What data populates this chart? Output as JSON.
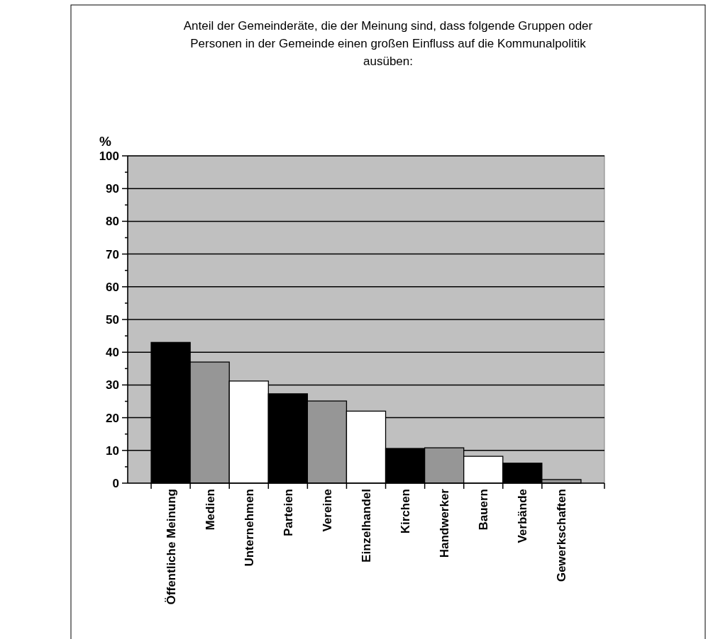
{
  "chart_data": {
    "type": "bar",
    "title": "Anteil der Gemeinderäte, die der Meinung sind, dass folgende Gruppen oder Personen in der Gemeinde einen großen Einfluss auf die Kommunalpolitik ausüben:",
    "ylabel": "%",
    "categories": [
      "Öffentliche Meinung",
      "Medien",
      "Unternehmen",
      "Parteien",
      "Vereine",
      "Einzelhandel",
      "Kirchen",
      "Handwerker",
      "Bauern",
      "Verbände",
      "Gewerkschaften"
    ],
    "values": [
      43,
      37,
      31.2,
      27.3,
      25.1,
      22,
      10.6,
      10.8,
      8.2,
      6.1,
      1.1
    ],
    "colors": [
      "#000000",
      "#969696",
      "#ffffff",
      "#000000",
      "#969696",
      "#ffffff",
      "#000000",
      "#969696",
      "#ffffff",
      "#000000",
      "#969696"
    ],
    "ylim": [
      0,
      100
    ],
    "yticks": [
      0,
      {
        "value": 5,
        "label": null
      },
      10,
      {
        "value": 15,
        "label": null
      },
      20,
      {
        "value": 25,
        "label": null
      },
      30,
      {
        "value": 35,
        "label": null
      },
      40,
      {
        "value": 45,
        "label": null
      },
      50,
      {
        "value": 55,
        "label": null
      },
      60,
      {
        "value": 65,
        "label": null
      },
      70,
      {
        "value": 75,
        "label": null
      },
      80,
      {
        "value": 85,
        "label": null
      },
      90,
      {
        "value": 95,
        "label": null
      },
      100
    ],
    "grid": "y"
  }
}
